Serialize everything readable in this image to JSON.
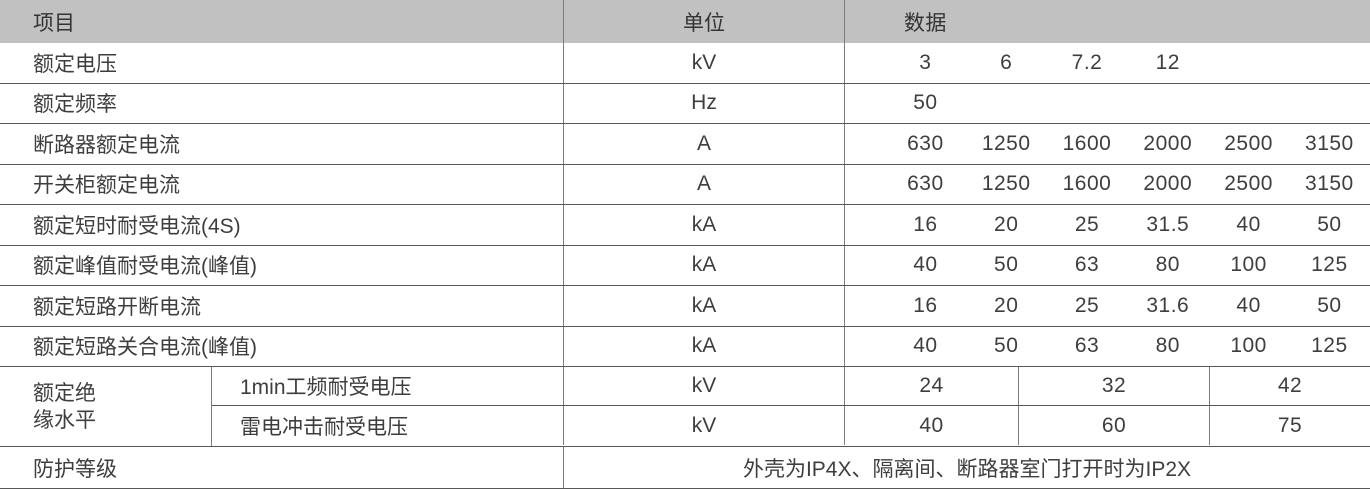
{
  "table": {
    "header": {
      "item": "项目",
      "unit": "单位",
      "data": "数据"
    },
    "rows": [
      {
        "label": "额定电压",
        "unit": "kV",
        "values": [
          "3",
          "6",
          "7.2",
          "12",
          "",
          ""
        ]
      },
      {
        "label": "额定频率",
        "unit": "Hz",
        "values": [
          "50",
          "",
          "",
          "",
          "",
          ""
        ]
      },
      {
        "label": "断路器额定电流",
        "unit": "A",
        "values": [
          "630",
          "1250",
          "1600",
          "2000",
          "2500",
          "3150"
        ]
      },
      {
        "label": "开关柜额定电流",
        "unit": "A",
        "values": [
          "630",
          "1250",
          "1600",
          "2000",
          "2500",
          "3150"
        ]
      },
      {
        "label": "额定短时耐受电流(4S)",
        "unit": "kA",
        "values": [
          "16",
          "20",
          "25",
          "31.5",
          "40",
          "50"
        ]
      },
      {
        "label": "额定峰值耐受电流(峰值)",
        "unit": "kA",
        "values": [
          "40",
          "50",
          "63",
          "80",
          "100",
          "125"
        ]
      },
      {
        "label": "额定短路开断电流",
        "unit": "kA",
        "values": [
          "16",
          "20",
          "25",
          "31.6",
          "40",
          "50"
        ]
      },
      {
        "label": "额定短路关合电流(峰值)",
        "unit": "kA",
        "values": [
          "40",
          "50",
          "63",
          "80",
          "100",
          "125"
        ]
      }
    ],
    "insulation": {
      "group_label_line1": "额定绝",
      "group_label_line2": "缘水平",
      "sub_rows": [
        {
          "label": "1min工频耐受电压",
          "unit": "kV",
          "values": [
            "24",
            "32",
            "42"
          ]
        },
        {
          "label": "雷电冲击耐受电压",
          "unit": "kV",
          "values": [
            "40",
            "60",
            "75"
          ]
        }
      ]
    },
    "protection": {
      "label": "防护等级",
      "value": "外壳为IP4X、隔离间、断路器室门打开时为IP2X"
    }
  },
  "colors": {
    "header_bg": "#c1c1c1",
    "horizontal_line": "#585858",
    "vertical_line": "#7c7c7c",
    "text": "#3e3e3e"
  }
}
